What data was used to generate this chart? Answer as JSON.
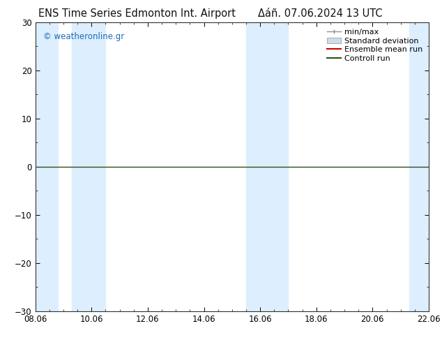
{
  "title_left": "ENS Time Series Edmonton Int. Airport",
  "title_right": "Δáñ. 07.06.2024 13 UTC",
  "ylim": [
    -30,
    30
  ],
  "yticks": [
    -30,
    -20,
    -10,
    0,
    10,
    20,
    30
  ],
  "xtick_labels": [
    "08.06",
    "10.06",
    "12.06",
    "14.06",
    "16.06",
    "18.06",
    "20.06",
    "22.06"
  ],
  "xtick_positions": [
    0,
    2,
    4,
    6,
    8,
    10,
    12,
    14
  ],
  "xlim_start": 0,
  "xlim_end": 14,
  "blue_bands": [
    [
      0.0,
      0.8
    ],
    [
      1.3,
      2.5
    ],
    [
      7.5,
      9.0
    ],
    [
      13.3,
      14.0
    ]
  ],
  "band_color": "#ddeeff",
  "zero_line_color": "#2d5016",
  "legend_labels": [
    "min/max",
    "Standard deviation",
    "Ensemble mean run",
    "Controll run"
  ],
  "legend_colors_line": [
    "#909090",
    "#b0c8d8",
    "#cc0000",
    "#2d5016"
  ],
  "watermark_text": "© weatheronline.gr",
  "watermark_color": "#1a6bb5",
  "bg_color": "#ffffff",
  "title_fontsize": 10.5,
  "tick_fontsize": 8.5,
  "legend_fontsize": 8
}
